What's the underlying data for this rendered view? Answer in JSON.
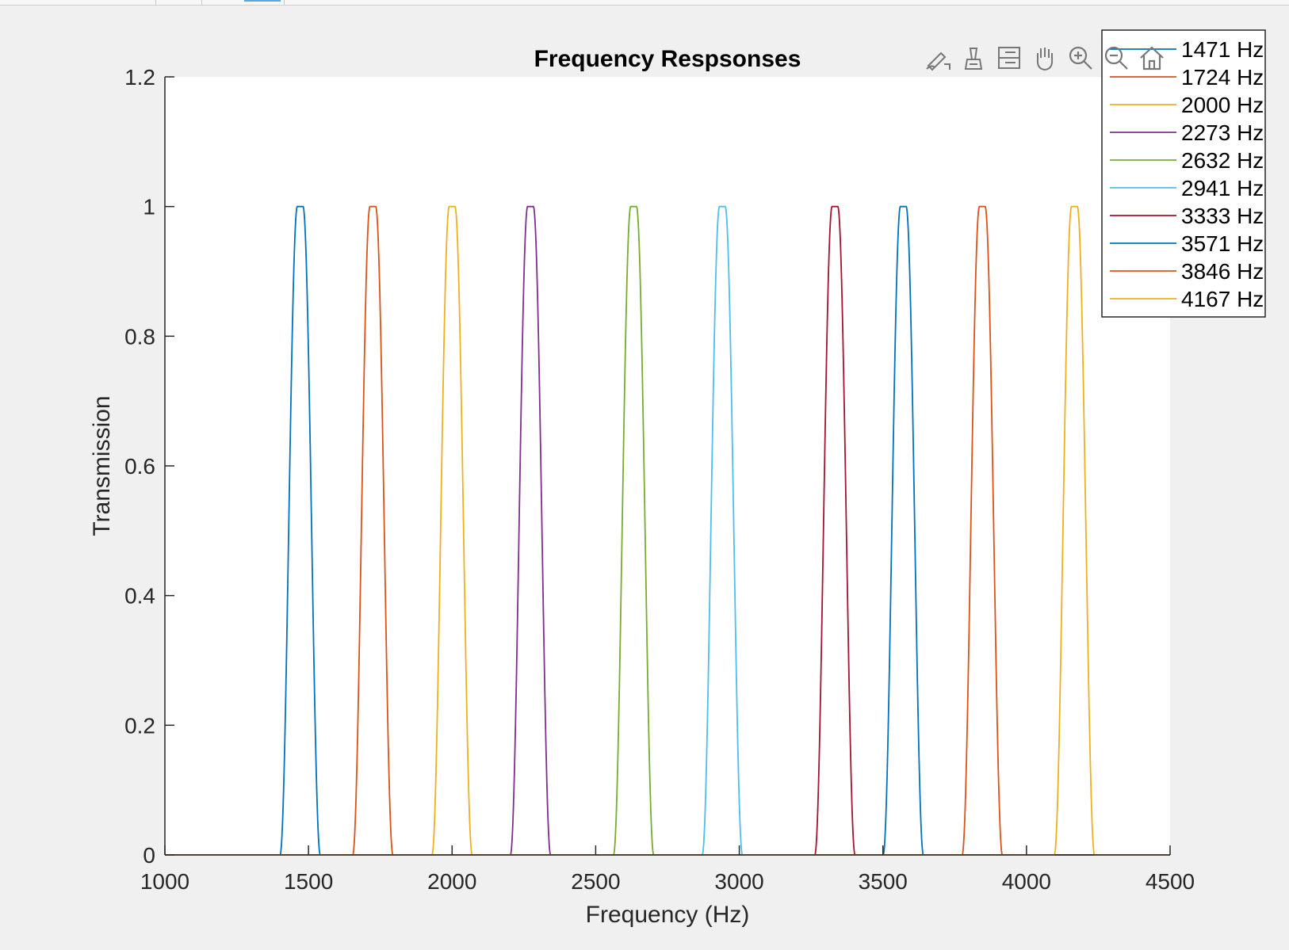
{
  "toolbar": {
    "items": [
      {
        "name": "brush-edit-icon"
      },
      {
        "name": "data-tips-icon"
      },
      {
        "name": "legend-toggle-icon"
      },
      {
        "name": "pan-hand-icon"
      },
      {
        "name": "zoom-in-icon"
      },
      {
        "name": "zoom-out-icon"
      },
      {
        "name": "home-restore-icon"
      }
    ]
  },
  "chart_data": {
    "type": "line",
    "title": "Frequency Respsonses",
    "xlabel": "Frequency (Hz)",
    "ylabel": "Transmission",
    "xlim": [
      1000,
      4500
    ],
    "ylim": [
      0,
      1.2
    ],
    "xticks": [
      1000,
      1500,
      2000,
      2500,
      3000,
      3500,
      4000,
      4500
    ],
    "xtick_labels": [
      "1000",
      "1500",
      "2000",
      "2500",
      "3000",
      "3500",
      "4000",
      "4500"
    ],
    "yticks": [
      0,
      0.2,
      0.4,
      0.6,
      0.8,
      1,
      1.2
    ],
    "ytick_labels": [
      "0",
      "0.2",
      "0.4",
      "0.6",
      "0.8",
      "1",
      "1.2"
    ],
    "grid": false,
    "legend_position": "top-right",
    "peak_transmission": 1,
    "passband_flat_top_hz": 20,
    "transition_width_hz": 60,
    "series": [
      {
        "name": "1471 Hz",
        "center": 1471,
        "color": "#0072BD"
      },
      {
        "name": "1724 Hz",
        "center": 1724,
        "color": "#D95319"
      },
      {
        "name": "2000 Hz",
        "center": 2000,
        "color": "#EDB120"
      },
      {
        "name": "2273 Hz",
        "center": 2273,
        "color": "#7E2F8E"
      },
      {
        "name": "2632 Hz",
        "center": 2632,
        "color": "#77AC30"
      },
      {
        "name": "2941 Hz",
        "center": 2941,
        "color": "#4DBEEE"
      },
      {
        "name": "3333 Hz",
        "center": 3333,
        "color": "#A2142F"
      },
      {
        "name": "3571 Hz",
        "center": 3571,
        "color": "#0072BD"
      },
      {
        "name": "3846 Hz",
        "center": 3846,
        "color": "#D95319"
      },
      {
        "name": "4167 Hz",
        "center": 4167,
        "color": "#EDB120"
      }
    ]
  }
}
